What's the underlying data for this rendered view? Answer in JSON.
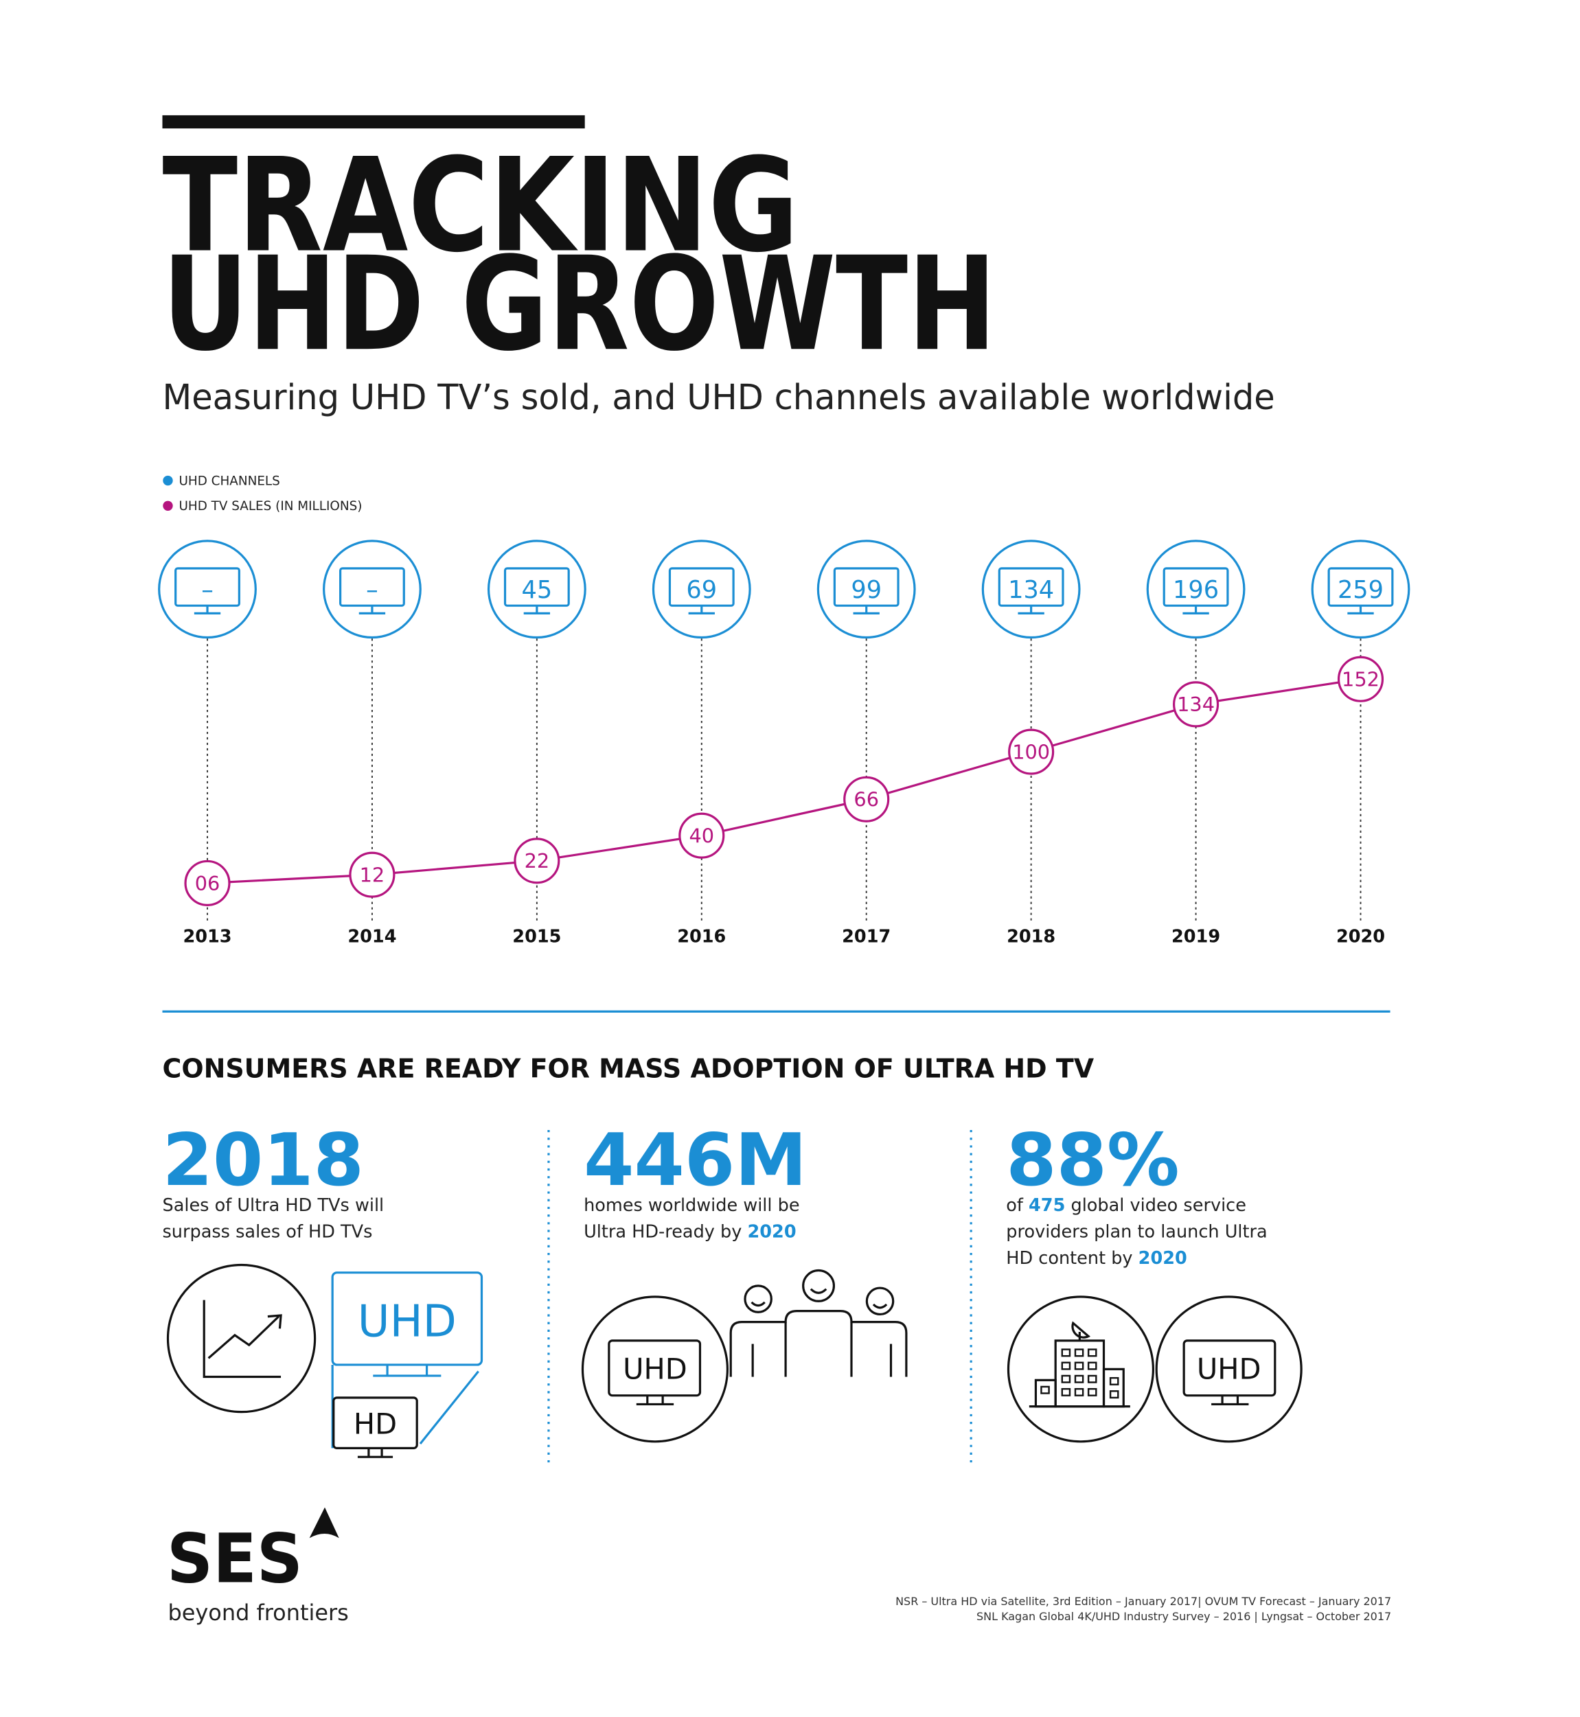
{
  "header": {
    "title_lines": [
      "TRACKING",
      "UHD GROWTH"
    ],
    "subtitle": "Measuring UHD TV’s sold, and UHD channels available worldwide"
  },
  "chart_data": {
    "type": "line",
    "categories": [
      "2013",
      "2014",
      "2015",
      "2016",
      "2017",
      "2018",
      "2019",
      "2020"
    ],
    "series": [
      {
        "name": "UHD CHANNELS",
        "type": "badge",
        "color": "#1b8ed4",
        "values": [
          null,
          null,
          45,
          69,
          99,
          134,
          196,
          259
        ],
        "value_labels": [
          "–",
          "–",
          "45",
          "69",
          "99",
          "134",
          "196",
          "259"
        ]
      },
      {
        "name": "UHD TV SALES (IN MILLIONS)",
        "type": "line",
        "color": "#b5157f",
        "values": [
          6,
          12,
          22,
          40,
          66,
          100,
          134,
          152
        ],
        "value_labels": [
          "06",
          "12",
          "22",
          "40",
          "66",
          "100",
          "134",
          "152"
        ]
      }
    ],
    "ylim": [
      0,
      160
    ]
  },
  "section": {
    "heading": "CONSUMERS ARE READY FOR MASS ADOPTION OF ULTRA HD TV",
    "stats": [
      {
        "figure": "2018",
        "lines": [
          [
            {
              "text": "Sales of Ultra HD TVs will"
            }
          ],
          [
            {
              "text": "surpass sales of HD TVs"
            }
          ]
        ]
      },
      {
        "figure": "446M",
        "lines": [
          [
            {
              "text": "homes worldwide will be"
            }
          ],
          [
            {
              "text": "Ultra HD-ready by "
            },
            {
              "text": "2020",
              "strong": true
            }
          ]
        ]
      },
      {
        "figure": "88%",
        "lines": [
          [
            {
              "text": "of "
            },
            {
              "text": "475",
              "strong": true
            },
            {
              "text": " global video service"
            }
          ],
          [
            {
              "text": "providers plan to launch Ultra"
            }
          ],
          [
            {
              "text": "HD content by "
            },
            {
              "text": "2020",
              "strong": true
            }
          ]
        ]
      }
    ]
  },
  "icons": {
    "labels": [
      "UHD",
      "HD",
      "UHD",
      "UHD"
    ]
  },
  "footer": {
    "logo": "SES",
    "tagline": "beyond frontiers",
    "sources": [
      "NSR – Ultra HD via Satellite, 3rd Edition – January 2017| OVUM TV Forecast – January 2017",
      "SNL Kagan Global 4K/UHD Industry Survey – 2016 | Lyngsat – October 2017"
    ]
  }
}
